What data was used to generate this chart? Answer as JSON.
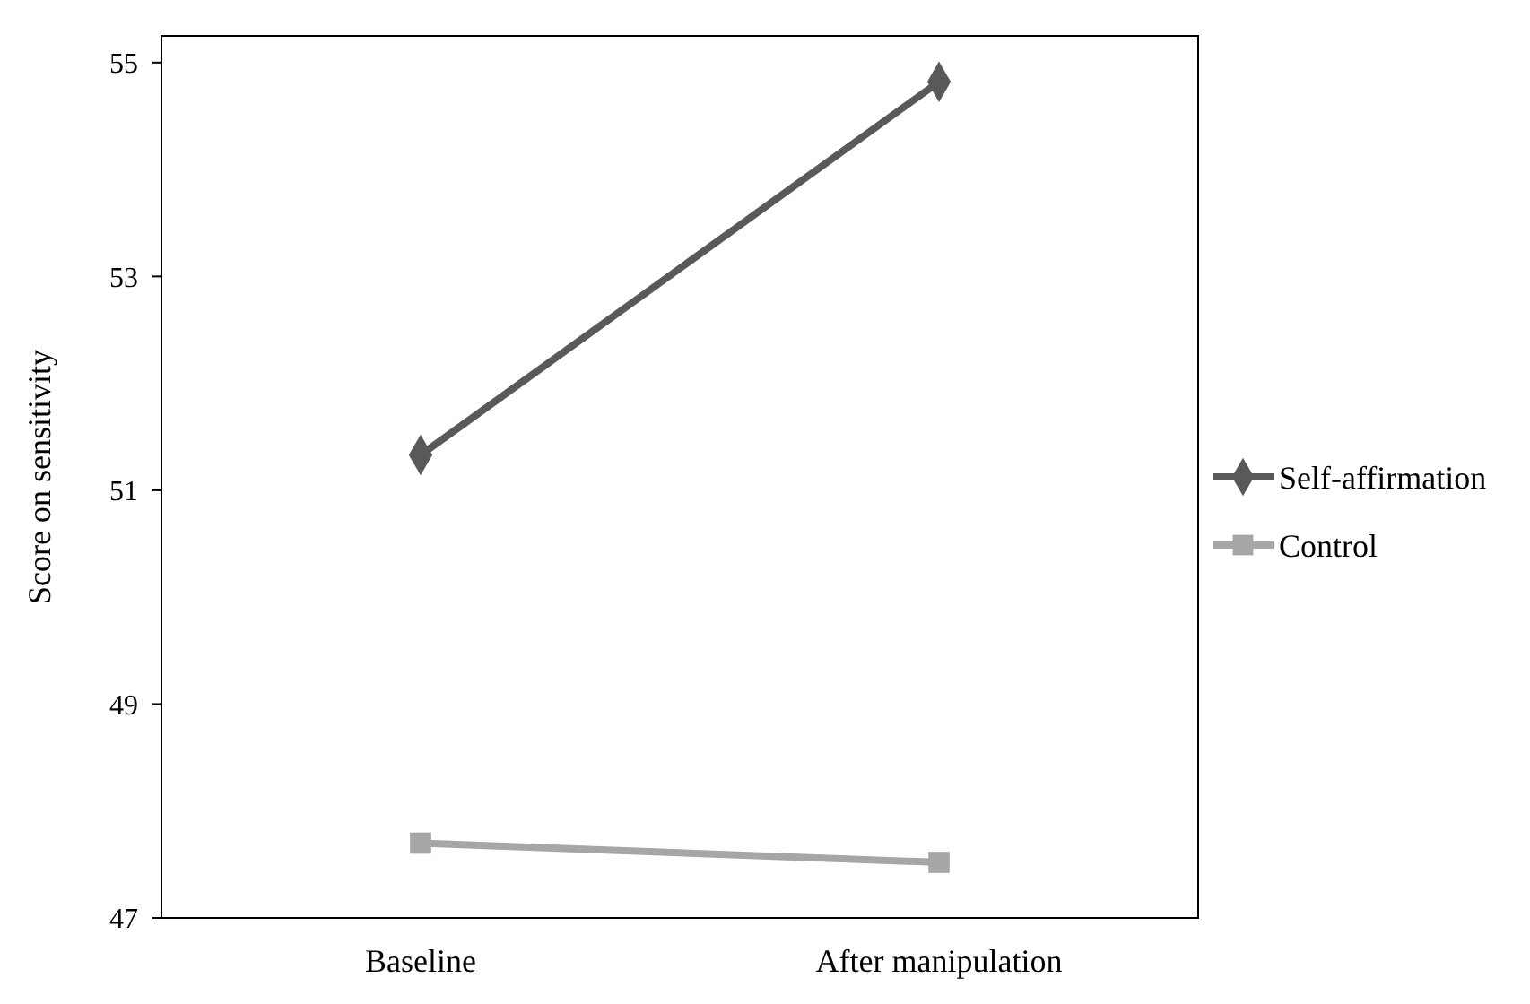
{
  "chart_data": {
    "type": "line",
    "ylabel": "Score on sensitivity",
    "categories": [
      "Baseline",
      "After manipulation"
    ],
    "series": [
      {
        "name": "Self-affirmation",
        "color": "#595959",
        "values": [
          51.33,
          54.82
        ],
        "marker": "diamond"
      },
      {
        "name": "Control",
        "color": "#a6a6a6",
        "values": [
          47.7,
          47.52
        ],
        "marker": "square"
      }
    ],
    "ylim": [
      47,
      55.25
    ],
    "yticks": [
      47,
      49,
      51,
      53,
      55
    ],
    "grid": false,
    "legend": "right",
    "line_style": "solid"
  }
}
